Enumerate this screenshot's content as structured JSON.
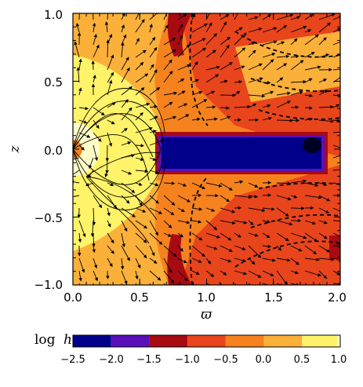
{
  "chart_data": {
    "type": "heatmap",
    "title": "",
    "xlabel": "ϖ",
    "ylabel": "z",
    "xlim": [
      0.0,
      2.0
    ],
    "ylim": [
      -1.0,
      1.0
    ],
    "xticks": [
      "0.0",
      "0.5",
      "1.0",
      "1.5",
      "2.0"
    ],
    "yticks": [
      "1.0",
      "0.5",
      "0.0",
      "−0.5",
      "−1.0"
    ],
    "xtick_values": [
      0.0,
      0.5,
      1.0,
      1.5,
      2.0
    ],
    "ytick_values": [
      1.0,
      0.5,
      0.0,
      -0.5,
      -1.0
    ],
    "overlays": [
      "velocity vectors",
      "magnetic field lines",
      "dashed contours"
    ],
    "colorbar": {
      "label_prefix": "log",
      "label_var": "h",
      "orientation": "horizontal",
      "ticks": [
        "−2.5",
        "−2.0",
        "−1.5",
        "−1.0",
        "−0.5",
        "0.0",
        "0.5",
        "1.0"
      ],
      "tick_values": [
        -2.5,
        -2.0,
        -1.5,
        -1.0,
        -0.5,
        0.0,
        0.5,
        1.0
      ],
      "bins": [
        {
          "from": -2.5,
          "to": -2.0,
          "color": "#00008b"
        },
        {
          "from": -2.0,
          "to": -1.5,
          "color": "#5a10b8"
        },
        {
          "from": -1.5,
          "to": -1.0,
          "color": "#a80a12"
        },
        {
          "from": -1.0,
          "to": -0.5,
          "color": "#e8451c"
        },
        {
          "from": -0.5,
          "to": 0.0,
          "color": "#f6821e"
        },
        {
          "from": 0.0,
          "to": 0.5,
          "color": "#fbb03a"
        },
        {
          "from": 0.5,
          "to": 1.0,
          "color": "#fff36a"
        }
      ],
      "max_color": "#fffcc8"
    }
  }
}
